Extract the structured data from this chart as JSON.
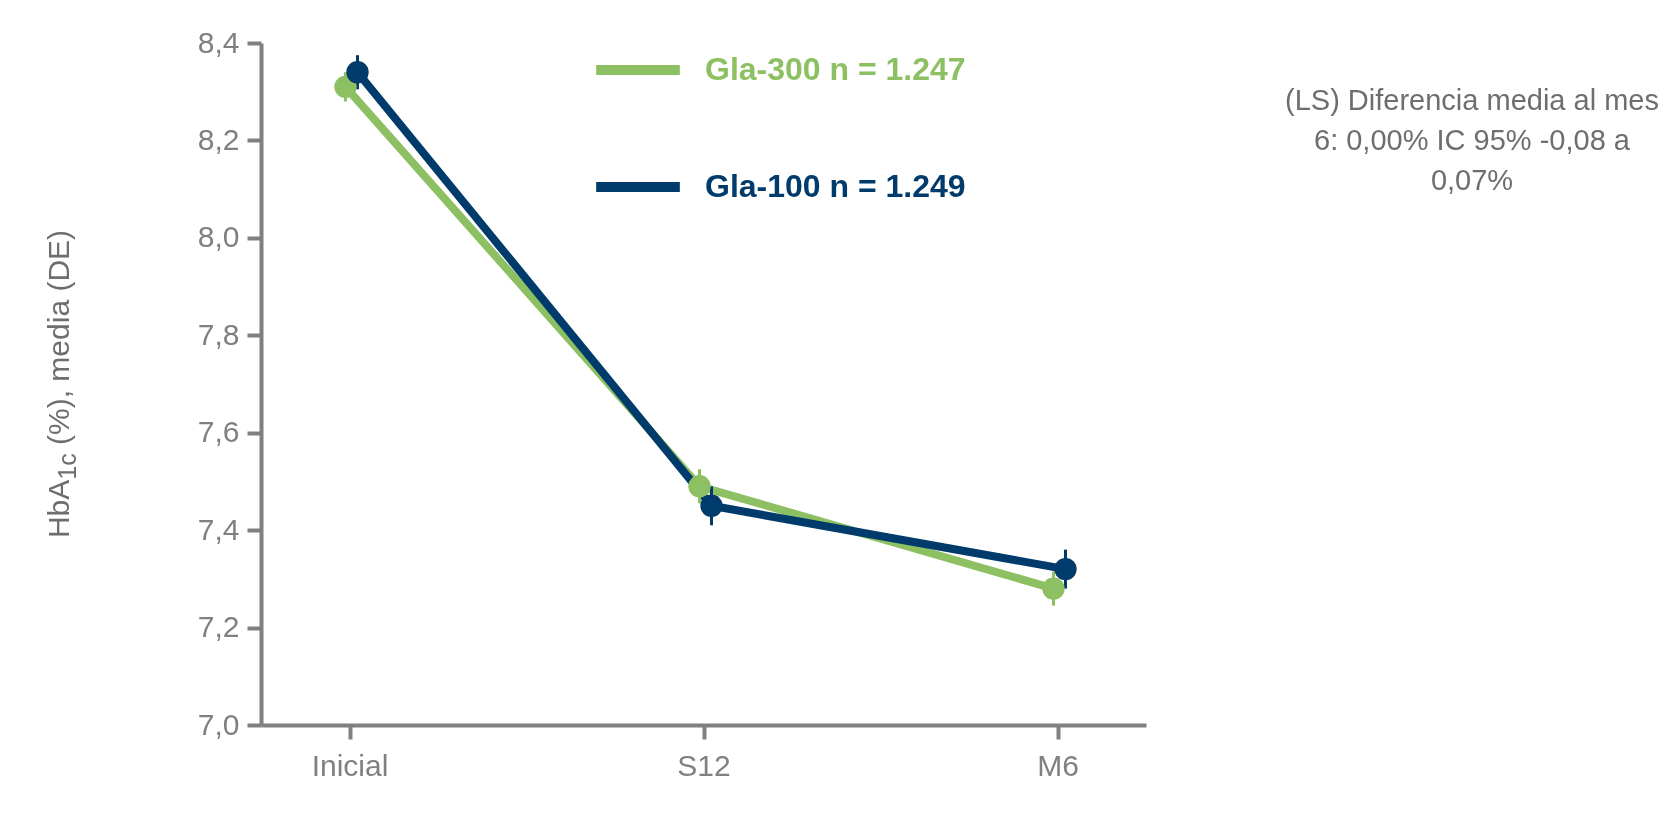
{
  "chart_data": {
    "type": "line",
    "ylabel": "HbA$_{1c}$ (%), media (DE)",
    "categories": [
      "Inicial",
      "S12",
      "M6"
    ],
    "series": [
      {
        "name": "Gla-300 n = 1.247",
        "color": "#8dc063",
        "values": [
          8.31,
          7.49,
          7.28
        ],
        "errors": [
          0.03,
          0.035,
          0.035
        ]
      },
      {
        "name": "Gla-100 n = 1.249",
        "color": "#003b6b",
        "values": [
          8.34,
          7.45,
          7.32
        ],
        "errors": [
          0.035,
          0.04,
          0.04
        ]
      }
    ],
    "ylim": [
      7.0,
      8.4
    ],
    "yticks": [
      {
        "value": 7.0,
        "label": "7,0"
      },
      {
        "value": 7.2,
        "label": "7,2"
      },
      {
        "value": 7.4,
        "label": "7,4"
      },
      {
        "value": 7.6,
        "label": "7,6"
      },
      {
        "value": 7.8,
        "label": "7,8"
      },
      {
        "value": 8.0,
        "label": "8,0"
      },
      {
        "value": 8.2,
        "label": "8,2"
      },
      {
        "value": 8.4,
        "label": "8,4"
      }
    ],
    "marker": "circle",
    "line_style": "solid",
    "grid": false,
    "legend": "top",
    "annotations": [
      "(LS) Diferencia media al mes 6: 0,00% IC 95% -0,08 a 0,07%"
    ]
  }
}
